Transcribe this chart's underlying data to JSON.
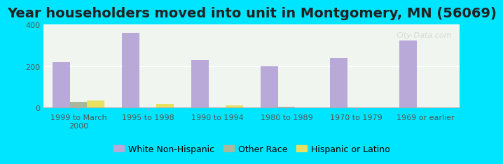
{
  "title": "Year householders moved into unit in Montgomery, MN (56069)",
  "categories": [
    "1999 to March\n2000",
    "1995 to 1998",
    "1990 to 1994",
    "1980 to 1989",
    "1970 to 1979",
    "1969 or earlier"
  ],
  "white_non_hispanic": [
    220,
    360,
    230,
    198,
    240,
    325
  ],
  "other_race": [
    28,
    0,
    0,
    3,
    0,
    0
  ],
  "hispanic_or_latino": [
    35,
    18,
    10,
    0,
    0,
    0
  ],
  "bar_colors": {
    "white": "#b8a9d9",
    "other": "#a8b89a",
    "hispanic": "#e8e060"
  },
  "background_outer": "#00e5ff",
  "background_inner_top": "#f0f5f0",
  "background_inner_bottom": "#e8f0e8",
  "ylim": [
    0,
    400
  ],
  "yticks": [
    0,
    200,
    400
  ],
  "bar_width": 0.25,
  "title_fontsize": 14,
  "tick_fontsize": 8,
  "legend_fontsize": 9,
  "watermark": "City-Data.com"
}
